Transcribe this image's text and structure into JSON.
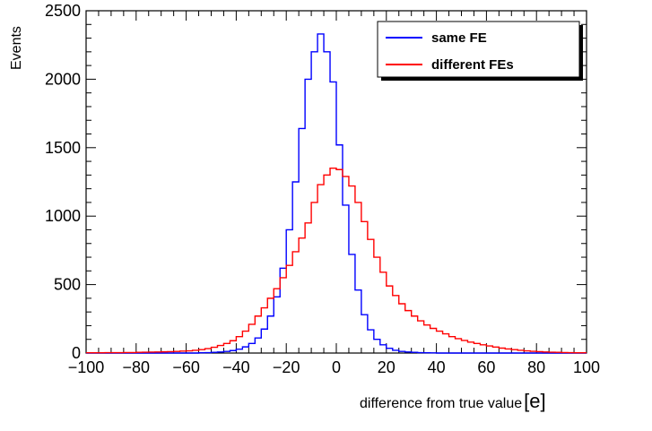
{
  "chart_data": {
    "type": "line",
    "style": "step-histogram",
    "xlabel": "difference from true value",
    "xlabel_unit": "[e]",
    "ylabel": "Events",
    "xlim": [
      -100,
      100
    ],
    "ylim": [
      0,
      2500
    ],
    "bin_width": 2.5,
    "x_ticks": [
      -100,
      -80,
      -60,
      -40,
      -20,
      0,
      20,
      40,
      60,
      80,
      100
    ],
    "x_tick_labels": [
      "−100",
      "−80",
      "−60",
      "−40",
      "−20",
      "0",
      "20",
      "40",
      "60",
      "80",
      "100"
    ],
    "y_ticks": [
      0,
      500,
      1000,
      1500,
      2000,
      2500
    ],
    "y_tick_labels": [
      "0",
      "500",
      "1000",
      "1500",
      "2000",
      "2500"
    ],
    "legend_position": "top-right",
    "series": [
      {
        "name": "same FE",
        "color": "#0000ff",
        "values": [
          0,
          0,
          0,
          0,
          0,
          0,
          0,
          0,
          0,
          0,
          0,
          0,
          0,
          0,
          0,
          0,
          0,
          0,
          2,
          3,
          5,
          8,
          12,
          18,
          28,
          45,
          70,
          110,
          175,
          270,
          410,
          620,
          900,
          1250,
          1640,
          2000,
          2200,
          2330,
          2200,
          1980,
          1520,
          1080,
          720,
          460,
          280,
          170,
          100,
          60,
          35,
          20,
          12,
          8,
          5,
          3,
          2,
          1,
          0,
          0,
          0,
          0,
          0,
          0,
          0,
          0,
          0,
          0,
          0,
          0,
          0,
          0,
          0,
          0,
          0,
          0,
          0,
          0,
          0,
          0,
          0,
          0
        ]
      },
      {
        "name": "different FEs",
        "color": "#ff0000",
        "values": [
          2,
          2,
          2,
          3,
          3,
          3,
          4,
          4,
          5,
          6,
          7,
          8,
          9,
          10,
          12,
          14,
          16,
          20,
          25,
          32,
          42,
          55,
          70,
          90,
          120,
          160,
          210,
          270,
          330,
          400,
          470,
          550,
          640,
          740,
          840,
          950,
          1100,
          1230,
          1300,
          1350,
          1340,
          1290,
          1220,
          1100,
          960,
          830,
          700,
          590,
          490,
          420,
          360,
          310,
          270,
          235,
          205,
          180,
          160,
          140,
          120,
          105,
          92,
          80,
          70,
          60,
          52,
          44,
          36,
          30,
          25,
          20,
          16,
          13,
          10,
          8,
          6,
          5,
          4,
          3,
          2,
          2
        ]
      }
    ]
  },
  "page": {
    "title": ""
  }
}
